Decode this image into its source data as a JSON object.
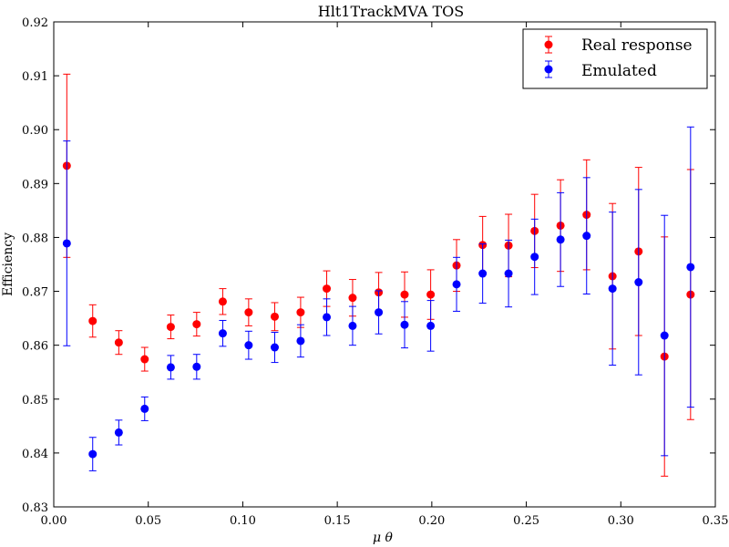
{
  "chart_data": {
    "type": "scatter",
    "title": "Hlt1TrackMVA TOS",
    "xlabel": "μ θ",
    "ylabel": "Efficiency",
    "xlim": [
      0.0,
      0.35
    ],
    "ylim": [
      0.83,
      0.92
    ],
    "xticks": [
      "0.00",
      "0.05",
      "0.10",
      "0.15",
      "0.20",
      "0.25",
      "0.30",
      "0.35"
    ],
    "yticks": [
      "0.83",
      "0.84",
      "0.85",
      "0.86",
      "0.87",
      "0.88",
      "0.89",
      "0.90",
      "0.91",
      "0.92"
    ],
    "grid": false,
    "legend_position": "top-right",
    "series": [
      {
        "name": "Real response",
        "color": "#ff0000",
        "x": [
          0.0069,
          0.0206,
          0.0344,
          0.0481,
          0.0619,
          0.0756,
          0.0894,
          0.1031,
          0.1169,
          0.1306,
          0.1444,
          0.1581,
          0.1719,
          0.1856,
          0.1994,
          0.2131,
          0.2269,
          0.2406,
          0.2544,
          0.2681,
          0.2819,
          0.2956,
          0.3094,
          0.3231,
          0.3369
        ],
        "y": [
          0.8933,
          0.8645,
          0.8605,
          0.8574,
          0.8634,
          0.8639,
          0.8681,
          0.8661,
          0.8653,
          0.8661,
          0.8705,
          0.8688,
          0.8698,
          0.8694,
          0.8694,
          0.8748,
          0.8786,
          0.8785,
          0.8812,
          0.8822,
          0.8842,
          0.8728,
          0.8774,
          0.8579,
          0.8694
        ],
        "err": [
          0.017,
          0.003,
          0.0022,
          0.0022,
          0.0022,
          0.0022,
          0.0024,
          0.0025,
          0.0026,
          0.0028,
          0.0033,
          0.0034,
          0.0037,
          0.0042,
          0.0046,
          0.0048,
          0.0053,
          0.0058,
          0.0068,
          0.0085,
          0.0102,
          0.0135,
          0.0156,
          0.0222,
          0.0232
        ]
      },
      {
        "name": "Emulated",
        "color": "#0000ff",
        "x": [
          0.0069,
          0.0206,
          0.0344,
          0.0481,
          0.0619,
          0.0756,
          0.0894,
          0.1031,
          0.1169,
          0.1306,
          0.1444,
          0.1581,
          0.1719,
          0.1856,
          0.1994,
          0.2131,
          0.2269,
          0.2406,
          0.2544,
          0.2681,
          0.2819,
          0.2956,
          0.3094,
          0.3231,
          0.3369
        ],
        "y": [
          0.8789,
          0.8398,
          0.8438,
          0.8482,
          0.8559,
          0.856,
          0.8622,
          0.86,
          0.8596,
          0.8608,
          0.8652,
          0.8636,
          0.8661,
          0.8638,
          0.8636,
          0.8713,
          0.8733,
          0.8733,
          0.8764,
          0.8796,
          0.8803,
          0.8705,
          0.8717,
          0.8618,
          0.8745
        ],
        "err": [
          0.019,
          0.0031,
          0.0023,
          0.0022,
          0.0022,
          0.0023,
          0.0024,
          0.0026,
          0.0028,
          0.003,
          0.0034,
          0.0036,
          0.004,
          0.0043,
          0.0047,
          0.005,
          0.0055,
          0.0062,
          0.007,
          0.0087,
          0.0108,
          0.0142,
          0.0172,
          0.0223,
          0.026
        ]
      }
    ]
  }
}
